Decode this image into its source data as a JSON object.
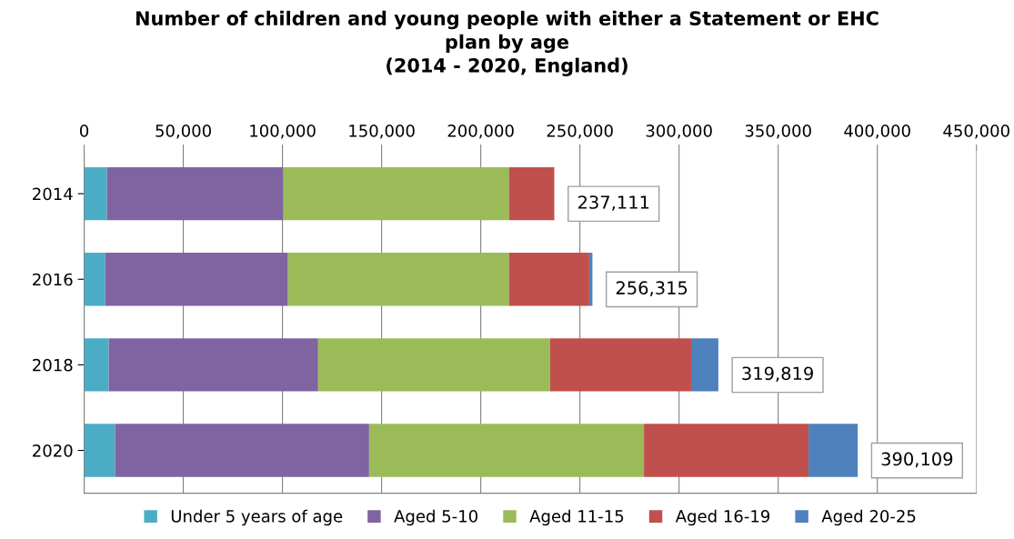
{
  "chart_data": {
    "type": "bar",
    "orientation": "horizontal",
    "stacked": true,
    "title": "Number of children and young people with either a Statement or EHC\nplan by age\n(2014 - 2020, England)",
    "categories": [
      "2014",
      "2016",
      "2018",
      "2020"
    ],
    "series": [
      {
        "name": "Under 5 years of age",
        "color": "#4bacc6",
        "values": [
          11500,
          10600,
          12400,
          15600
        ]
      },
      {
        "name": "Aged 5-10",
        "color": "#8064a2",
        "values": [
          89000,
          92200,
          105600,
          128100
        ]
      },
      {
        "name": "Aged 11-15",
        "color": "#9bbb59",
        "values": [
          113800,
          111500,
          117000,
          138600
        ]
      },
      {
        "name": "Aged 16-19",
        "color": "#c0504d",
        "values": [
          22811,
          40400,
          71100,
          83000
        ]
      },
      {
        "name": "Aged 20-25",
        "color": "#4f81bd",
        "values": [
          0,
          1615,
          13719,
          24809
        ]
      }
    ],
    "totals": [
      "237,111",
      "256,315",
      "319,819",
      "390,109"
    ],
    "xlim": [
      0,
      450000
    ],
    "xticks": [
      0,
      {
        "value": 50000,
        "label": "50,000"
      },
      {
        "value": 100000,
        "label": "100,000"
      },
      {
        "value": 150000,
        "label": "150,000"
      },
      {
        "value": 200000,
        "label": "200,000"
      },
      {
        "value": 250000,
        "label": "250,000"
      },
      {
        "value": 300000,
        "label": "300,000"
      },
      {
        "value": 350000,
        "label": "350,000"
      },
      {
        "value": 400000,
        "label": "400,000"
      },
      {
        "value": 450000,
        "label": "450,000"
      }
    ],
    "grid": "x",
    "legend": "bottom"
  }
}
